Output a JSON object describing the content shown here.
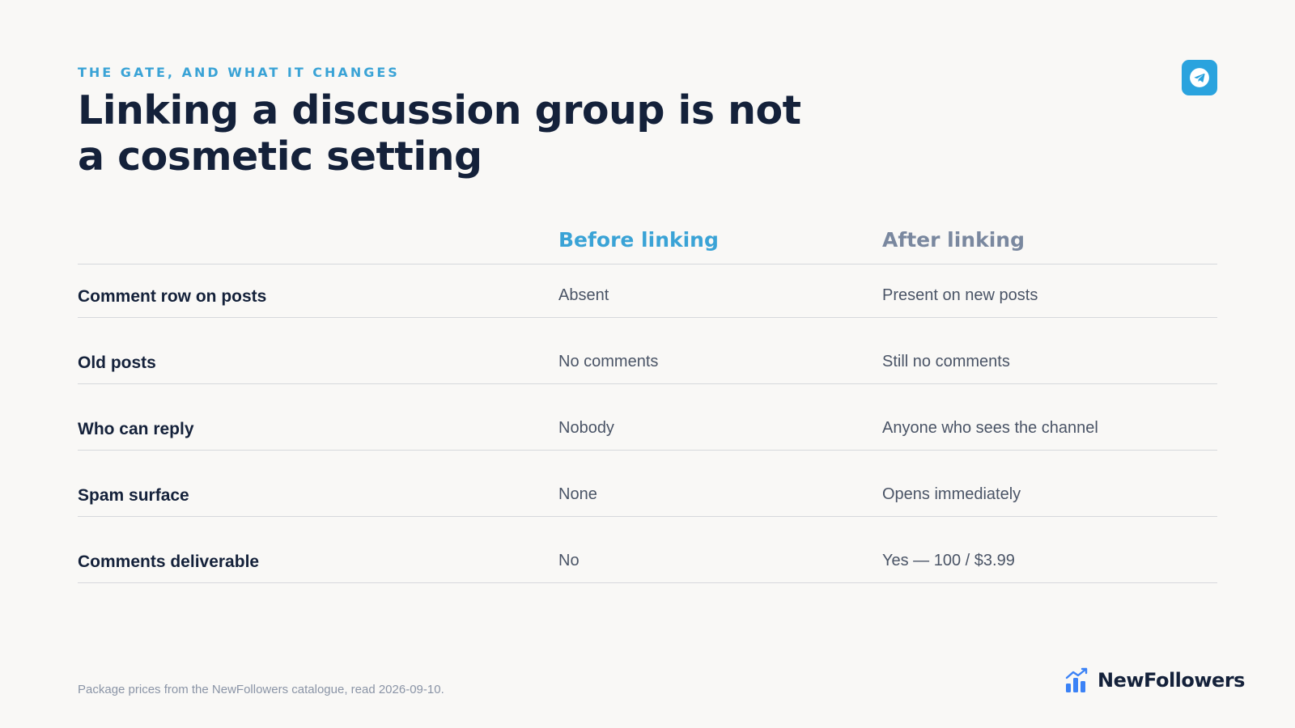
{
  "header": {
    "eyebrow": "THE GATE, AND WHAT IT CHANGES",
    "title": "Linking a discussion group is not a cosmetic setting",
    "badge_icon": "telegram-icon",
    "accent_color": "#3aa3d6"
  },
  "comparison": {
    "columns": [
      "Before linking",
      "After linking"
    ],
    "rows": [
      {
        "label": "Comment row on posts",
        "before": "Absent",
        "after": "Present on new posts"
      },
      {
        "label": "Old posts",
        "before": "No comments",
        "after": "Still no comments"
      },
      {
        "label": "Who can reply",
        "before": "Nobody",
        "after": "Anyone who sees the channel"
      },
      {
        "label": "Spam surface",
        "before": "None",
        "after": "Opens immediately"
      },
      {
        "label": "Comments deliverable",
        "before": "No",
        "after": "Yes — 100 / $3.99"
      }
    ]
  },
  "footer": {
    "note": "Package prices from the NewFollowers catalogue, read 2026-09-10.",
    "brand_name": "NewFollowers",
    "brand_icon": "growth-chart-icon"
  }
}
